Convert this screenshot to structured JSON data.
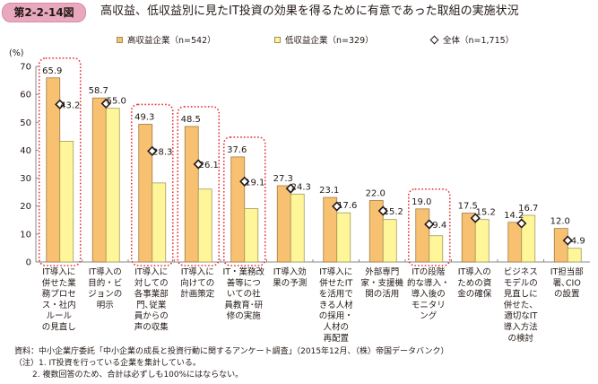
{
  "figure_badge": "第2-2-14図",
  "title": "高収益、低収益別に見たIT投資の効果を得るために有意であった取組の実施状況",
  "colors": {
    "high": "#f8c171",
    "high_border": "#a07b45",
    "low": "#fff69a",
    "low_border": "#a09a60",
    "highlight_box": "#e8343c",
    "axis": "#888888",
    "badge": "#e8a9bf"
  },
  "chart_data": {
    "type": "bar",
    "title": "高収益、低収益別に見たIT投資の効果を得るために有意であった取組の実施状況",
    "ylabel": "(%)",
    "xlabel": "",
    "ylim": [
      0,
      70
    ],
    "yticks": [
      0,
      10,
      20,
      30,
      40,
      50,
      60,
      70
    ],
    "grid": false,
    "legend_position": "top",
    "legend": [
      "高収益企業（n=542）",
      "低収益企業（n=329）",
      "全体（n=1,715）"
    ],
    "categories": [
      [
        "IT導入に",
        "併せた業",
        "務プロセ",
        "ス・社内",
        "ルール",
        "の見直し"
      ],
      [
        "IT導入の",
        "目的・ビ",
        "ジョンの",
        "明示"
      ],
      [
        "IT導入に",
        "対しての",
        "各事業部",
        "門､従業",
        "員からの",
        "声の収集"
      ],
      [
        "IT導入に",
        "向けての",
        "計画策定"
      ],
      [
        "IT・業務改",
        "善等につ",
        "いての社",
        "員教育･研",
        "修の実施"
      ],
      [
        "IT導入効",
        "果の予測"
      ],
      [
        "IT導入に",
        "併せたIT",
        "を活用で",
        "きる人材",
        "の採用・",
        "人材の",
        "再配置"
      ],
      [
        "外部専門",
        "家・支援機",
        "関の活用"
      ],
      [
        "ITの段階",
        "的な導入・",
        "導入後の",
        "モニタリ",
        "ング"
      ],
      [
        "IT導入の",
        "ための資",
        "金の確保"
      ],
      [
        "ビジネス",
        "モデルの",
        "見直しに",
        "併せた、",
        "適切なIT",
        "導入方法",
        "の検討"
      ],
      [
        "IT担当部",
        "署､CIO",
        "の設置"
      ]
    ],
    "series": [
      {
        "name": "高収益企業（n=542）",
        "type": "bar",
        "values": [
          65.9,
          58.7,
          49.3,
          48.5,
          37.6,
          27.3,
          23.1,
          22.0,
          19.0,
          17.5,
          14.2,
          12.0
        ],
        "labels": [
          "65.9",
          "58.7",
          "49.3",
          "48.5",
          "37.6",
          "27.3",
          "23.1",
          "22.0",
          "19.0",
          "17.5",
          "14.2",
          "12.0"
        ]
      },
      {
        "name": "低収益企業（n=329）",
        "type": "bar",
        "values": [
          43.2,
          55.0,
          28.3,
          26.1,
          19.1,
          24.3,
          17.6,
          15.2,
          9.4,
          15.2,
          16.7,
          4.9
        ],
        "labels": [
          "43.2",
          "55.0",
          "28.3",
          "26.1",
          "19.1",
          "24.3",
          "17.6",
          "15.2",
          "9.4",
          "15.2",
          "16.7",
          "4.9"
        ]
      },
      {
        "name": "全体（n=1,715）",
        "type": "marker-diamond",
        "values": [
          56.4,
          56.7,
          39.7,
          35.0,
          28.8,
          26.3,
          19.9,
          18.3,
          13.5,
          15.7,
          13.8,
          7.7
        ]
      }
    ],
    "highlighted_categories": [
      0,
      2,
      3,
      4,
      8
    ]
  },
  "notes": {
    "source": "資料：中小企業庁委託「中小企業の成長と投資行動に関するアンケート調査」（2015年12月、（株）帝国データバンク）",
    "note1": "（注）1. IT投資を行っている企業を集計している。",
    "note2": "2. 複数回答のため、合計は必ずしも100%にはならない。"
  }
}
